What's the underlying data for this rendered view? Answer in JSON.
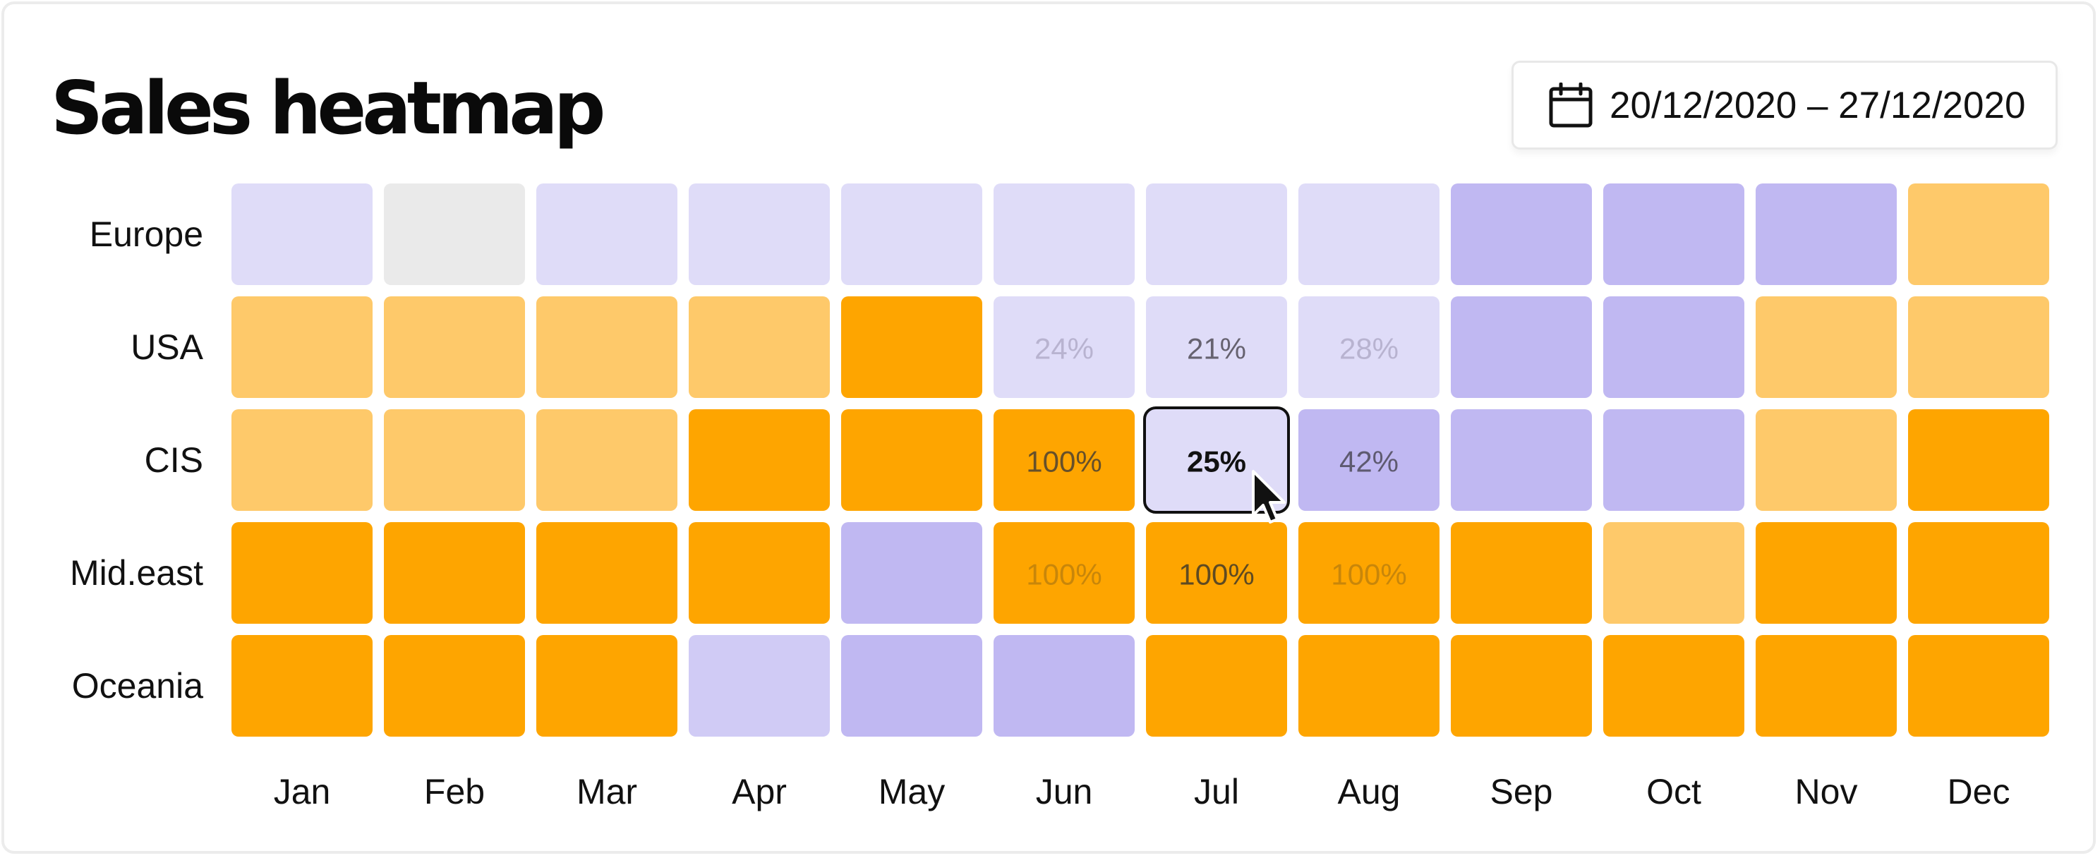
{
  "header": {
    "title": "Sales heatmap",
    "date_range": "20/12/2020 – 27/12/2020",
    "date_icon": "calendar-icon"
  },
  "colors": {
    "0": "#eaeaea",
    "1": "#dfdcf8",
    "2": "#d0cbf5",
    "3": "#c0b8f2",
    "4": "#fec96a",
    "5": "#fea500",
    "hovered_outline": "#111111",
    "cursor": "#111111"
  },
  "chart_data": {
    "type": "heatmap",
    "title": "Sales heatmap",
    "categories": [
      "Jan",
      "Feb",
      "Mar",
      "Apr",
      "May",
      "Jun",
      "Jul",
      "Aug",
      "Sep",
      "Oct",
      "Nov",
      "Dec"
    ],
    "rows": [
      "Europe",
      "USA",
      "CIS",
      "Mid.east",
      "Oceania"
    ],
    "levels": [
      [
        1,
        0,
        1,
        1,
        1,
        1,
        1,
        1,
        3,
        3,
        3,
        4
      ],
      [
        4,
        4,
        4,
        4,
        5,
        1,
        1,
        1,
        3,
        3,
        4,
        4
      ],
      [
        4,
        4,
        4,
        5,
        5,
        5,
        1,
        3,
        3,
        3,
        4,
        5
      ],
      [
        5,
        5,
        5,
        5,
        3,
        5,
        5,
        5,
        5,
        4,
        5,
        5
      ],
      [
        5,
        5,
        5,
        2,
        3,
        3,
        5,
        5,
        5,
        5,
        5,
        5
      ]
    ],
    "labels": [
      {
        "row": "USA",
        "col": "Jun",
        "text": "24%",
        "color": "#b8b3d0"
      },
      {
        "row": "USA",
        "col": "Jul",
        "text": "21%",
        "color": "#66626f"
      },
      {
        "row": "USA",
        "col": "Aug",
        "text": "28%",
        "color": "#b8b3d0"
      },
      {
        "row": "CIS",
        "col": "Jun",
        "text": "100%",
        "color": "#66502a"
      },
      {
        "row": "CIS",
        "col": "Jul",
        "text": "25%",
        "color": "#111111",
        "bold": true
      },
      {
        "row": "CIS",
        "col": "Aug",
        "text": "42%",
        "color": "#5e5a70"
      },
      {
        "row": "Mid.east",
        "col": "Jun",
        "text": "100%",
        "color": "#c8860a"
      },
      {
        "row": "Mid.east",
        "col": "Jul",
        "text": "100%",
        "color": "#5e4a22"
      },
      {
        "row": "Mid.east",
        "col": "Aug",
        "text": "100%",
        "color": "#c8860a"
      }
    ],
    "hovered_cell": {
      "row": "CIS",
      "col": "Jul"
    },
    "legend": "none",
    "grid": false
  }
}
